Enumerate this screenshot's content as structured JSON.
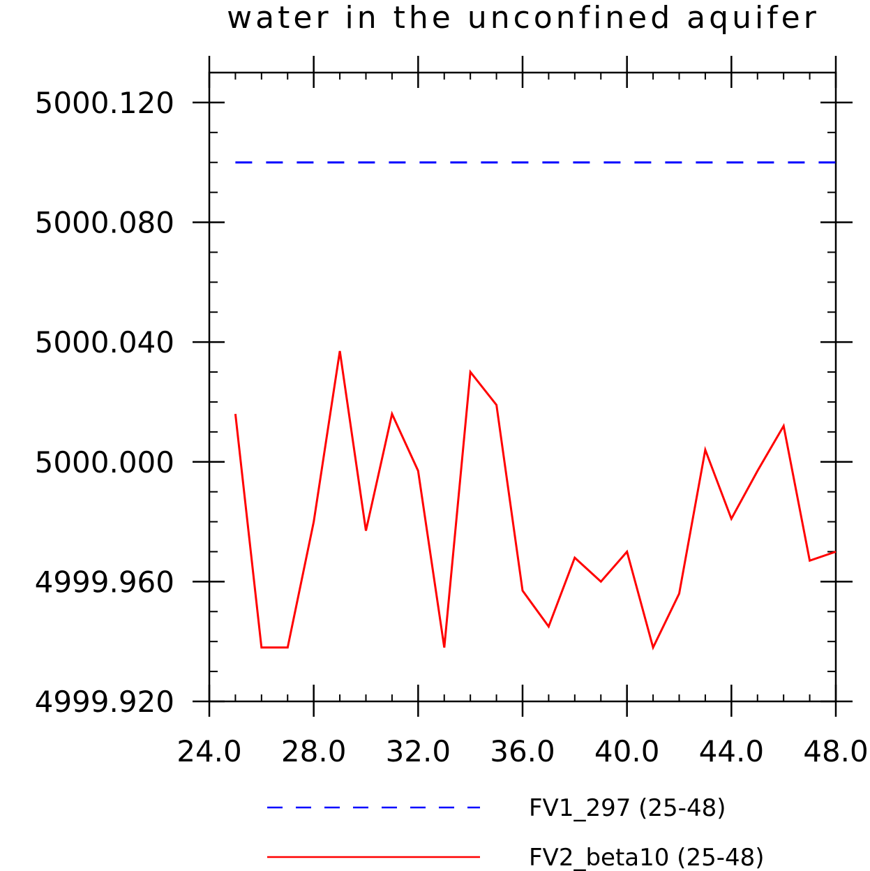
{
  "chart_data": {
    "type": "line",
    "title": "water in the unconfined aquifer",
    "xlabel": "",
    "ylabel": "",
    "xlim": [
      24.0,
      48.0
    ],
    "ylim": [
      4999.92,
      5000.13
    ],
    "x_ticks": [
      "24.0",
      "28.0",
      "32.0",
      "36.0",
      "40.0",
      "44.0",
      "48.0"
    ],
    "y_ticks": [
      "4999.920",
      "4999.960",
      "5000.000",
      "5000.040",
      "5000.080",
      "5000.120"
    ],
    "x_tick_values": [
      24,
      28,
      32,
      36,
      40,
      44,
      48
    ],
    "y_tick_values": [
      4999.92,
      4999.96,
      5000.0,
      5000.04,
      5000.08,
      5000.12
    ],
    "series": [
      {
        "name": "FV1_297 (25-48)",
        "color": "#0000ff",
        "style": "dashed",
        "x": [
          25,
          48
        ],
        "y": [
          5000.1,
          5000.1
        ]
      },
      {
        "name": "FV2_beta10 (25-48)",
        "color": "#ff0000",
        "style": "solid",
        "x": [
          25,
          26,
          27,
          28,
          29,
          30,
          31,
          32,
          33,
          34,
          35,
          36,
          37,
          38,
          39,
          40,
          41,
          42,
          43,
          44,
          45,
          46,
          47,
          48
        ],
        "y": [
          5000.016,
          4999.938,
          4999.938,
          4999.98,
          5000.037,
          4999.977,
          5000.016,
          4999.997,
          4999.938,
          5000.03,
          5000.019,
          4999.957,
          4999.945,
          4999.968,
          4999.96,
          4999.97,
          4999.938,
          4999.956,
          5000.004,
          4999.981,
          4999.997,
          5000.012,
          4999.967,
          4999.97
        ]
      }
    ],
    "legend_position": "bottom",
    "grid": false
  }
}
